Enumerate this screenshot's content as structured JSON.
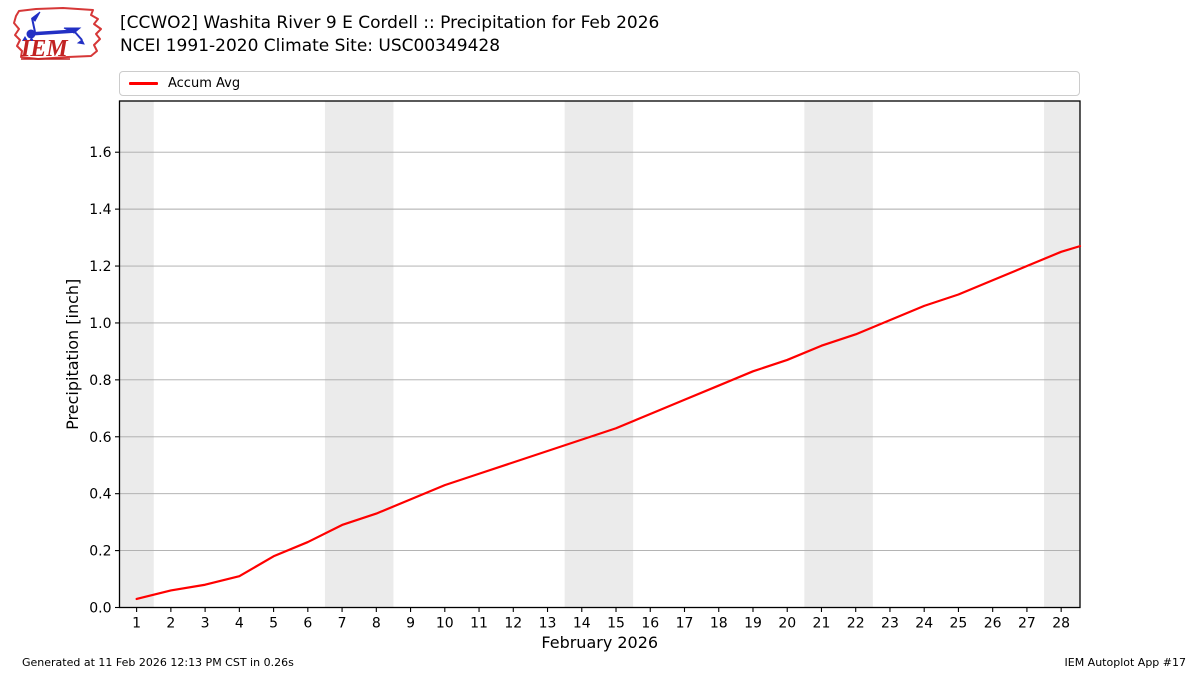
{
  "header": {
    "logo_text": "IEM"
  },
  "chart_data": {
    "type": "line",
    "title": "[CCWO2] Washita River 9 E Cordell :: Precipitation for Feb 2026",
    "subtitle": "NCEI 1991-2020 Climate Site: USC00349428",
    "xlabel": "February 2026",
    "ylabel": "Precipitation [inch]",
    "xlim": [
      0.5,
      28.55
    ],
    "ylim": [
      0,
      1.78
    ],
    "x": [
      1,
      2,
      3,
      4,
      5,
      6,
      7,
      8,
      9,
      10,
      11,
      12,
      13,
      14,
      15,
      16,
      17,
      18,
      19,
      20,
      21,
      22,
      23,
      24,
      25,
      26,
      27,
      28
    ],
    "yticks": [
      0.0,
      0.2,
      0.4,
      0.6,
      0.8,
      1.0,
      1.2,
      1.4,
      1.6
    ],
    "series": [
      {
        "name": "Accum Avg",
        "color": "#ff0000",
        "values": [
          0.03,
          0.06,
          0.08,
          0.11,
          0.18,
          0.23,
          0.29,
          0.33,
          0.38,
          0.43,
          0.47,
          0.51,
          0.55,
          0.59,
          0.63,
          0.68,
          0.73,
          0.78,
          0.83,
          0.87,
          0.92,
          0.96,
          1.01,
          1.06,
          1.1,
          1.15,
          1.2,
          1.25
        ],
        "end_x": 28.55,
        "end_value": 1.27
      }
    ],
    "weekend_bands": [
      [
        0.5,
        1.5
      ],
      [
        6.5,
        8.5
      ],
      [
        13.5,
        15.5
      ],
      [
        20.5,
        22.5
      ],
      [
        27.5,
        28.55
      ]
    ],
    "band_color": "#ebebeb",
    "grid_color": "#aaaaaa",
    "grid": "horizontal",
    "legend_position": "top"
  },
  "footer": {
    "left": "Generated at 11 Feb 2026 12:13 PM CST in 0.26s",
    "right": "IEM Autoplot App #17"
  }
}
